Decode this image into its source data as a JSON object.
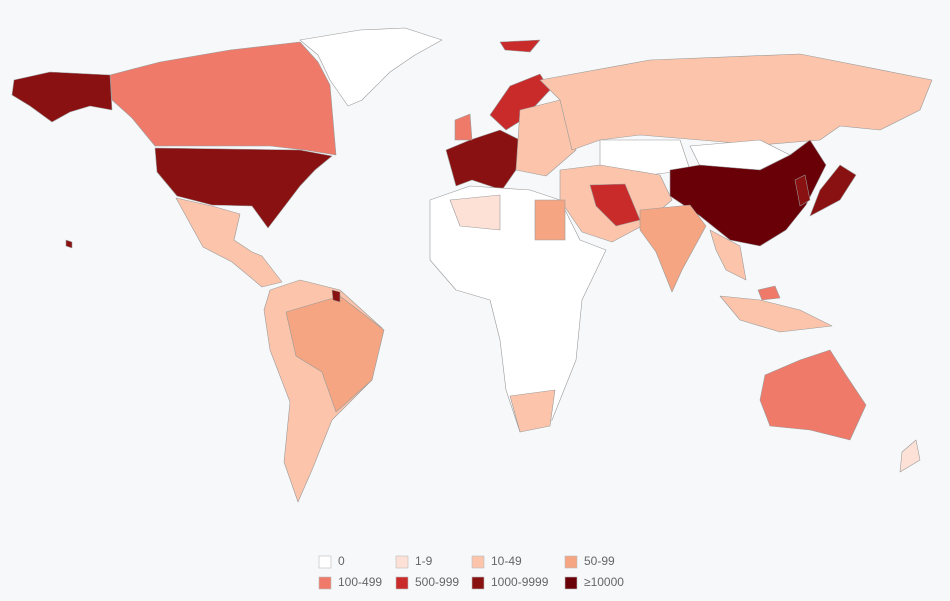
{
  "legend": {
    "items": [
      {
        "label": "0",
        "color": "#ffffff"
      },
      {
        "label": "1-9",
        "color": "#fde1d6"
      },
      {
        "label": "10-49",
        "color": "#fcc5ab"
      },
      {
        "label": "50-99",
        "color": "#f5a582"
      },
      {
        "label": "100-499",
        "color": "#f07a6a"
      },
      {
        "label": "500-999",
        "color": "#c92a2a"
      },
      {
        "label": "1000-9999",
        "color": "#8a1111"
      },
      {
        "label": "≥10000",
        "color": "#690008"
      }
    ]
  }
}
